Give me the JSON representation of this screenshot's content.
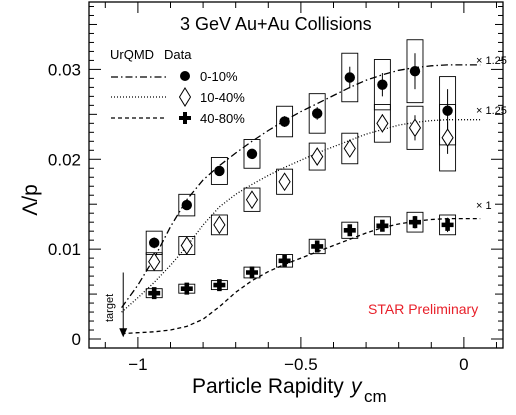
{
  "chart_data": {
    "type": "scatter",
    "title": "3 GeV Au+Au Collisions",
    "xlabel": "Particle Rapidity",
    "xlabel_symbol": "y",
    "xlabel_subscript": "cm",
    "ylabel": "Λ/p",
    "xlim": [
      -1.15,
      0.12
    ],
    "ylim": [
      -0.001,
      0.0375
    ],
    "x_ticks": [
      -1,
      -0.5,
      0
    ],
    "x_tick_labels": [
      "−1",
      "−0.5",
      "0"
    ],
    "y_ticks": [
      0,
      0.01,
      0.02,
      0.03
    ],
    "y_tick_labels": [
      "0",
      "0.01",
      "0.02",
      "0.03"
    ],
    "legend": {
      "header_model": "UrQMD",
      "header_data": "Data",
      "entries": [
        "0-10%",
        "10-40%",
        "40-80%"
      ],
      "placement": "top-left"
    },
    "series": [
      {
        "name": "0-10%",
        "marker": "filled-circle",
        "x": [
          -0.95,
          -0.85,
          -0.75,
          -0.65,
          -0.55,
          -0.45,
          -0.35,
          -0.25,
          -0.15,
          -0.05
        ],
        "y": [
          0.0107,
          0.0149,
          0.0187,
          0.0206,
          0.0242,
          0.0251,
          0.0291,
          0.0283,
          0.0298,
          0.0254
        ],
        "stat": [
          0.0006,
          0.0005,
          0.0005,
          0.0005,
          0.0006,
          0.0007,
          0.0012,
          0.0013,
          0.002,
          0.0024
        ],
        "syst": [
          0.0013,
          0.0012,
          0.0015,
          0.0016,
          0.0017,
          0.0022,
          0.0027,
          0.0028,
          0.0035,
          0.0038
        ]
      },
      {
        "name": "10-40%",
        "marker": "open-diamond",
        "x": [
          -0.95,
          -0.85,
          -0.75,
          -0.65,
          -0.55,
          -0.45,
          -0.35,
          -0.25,
          -0.15,
          -0.05
        ],
        "y": [
          0.0086,
          0.0104,
          0.0127,
          0.0155,
          0.0175,
          0.0203,
          0.0212,
          0.024,
          0.0235,
          0.0224
        ],
        "stat": [
          0.0005,
          0.0004,
          0.0004,
          0.0005,
          0.0006,
          0.0006,
          0.0008,
          0.001,
          0.0014,
          0.0018
        ],
        "syst": [
          0.001,
          0.001,
          0.0011,
          0.0013,
          0.0014,
          0.0015,
          0.0017,
          0.0021,
          0.0024,
          0.0037
        ]
      },
      {
        "name": "40-80%",
        "marker": "filled-cross",
        "x": [
          -0.95,
          -0.85,
          -0.75,
          -0.65,
          -0.55,
          -0.45,
          -0.35,
          -0.25,
          -0.15,
          -0.05
        ],
        "y": [
          0.0051,
          0.0056,
          0.006,
          0.0074,
          0.0087,
          0.0103,
          0.0121,
          0.0126,
          0.013,
          0.0127
        ],
        "stat": [
          0.0003,
          0.0003,
          0.0003,
          0.0004,
          0.0004,
          0.0005,
          0.0006,
          0.0006,
          0.0007,
          0.0008
        ],
        "syst": [
          0.0005,
          0.0005,
          0.0005,
          0.0006,
          0.0007,
          0.0008,
          0.0009,
          0.001,
          0.0011,
          0.0011
        ]
      }
    ],
    "models": [
      {
        "style": "dash-dot",
        "scale_label": "× 1.25",
        "x": [
          -1.05,
          -1.0,
          -0.95,
          -0.9,
          -0.85,
          -0.8,
          -0.75,
          -0.7,
          -0.65,
          -0.6,
          -0.55,
          -0.5,
          -0.45,
          -0.4,
          -0.35,
          -0.3,
          -0.25,
          -0.2,
          -0.15,
          -0.1,
          -0.05,
          0.0,
          0.05
        ],
        "y": [
          0.0035,
          0.006,
          0.009,
          0.0125,
          0.0155,
          0.0177,
          0.0193,
          0.0207,
          0.022,
          0.0232,
          0.0243,
          0.0253,
          0.0262,
          0.0271,
          0.028,
          0.0288,
          0.0294,
          0.0299,
          0.0302,
          0.0304,
          0.0305,
          0.0305,
          0.0305
        ]
      },
      {
        "style": "dotted",
        "scale_label": "× 1.25",
        "x": [
          -1.05,
          -1.0,
          -0.95,
          -0.9,
          -0.85,
          -0.8,
          -0.75,
          -0.7,
          -0.65,
          -0.6,
          -0.55,
          -0.5,
          -0.45,
          -0.4,
          -0.35,
          -0.3,
          -0.25,
          -0.2,
          -0.15,
          -0.1,
          -0.05,
          0.0,
          0.05
        ],
        "y": [
          0.003,
          0.0046,
          0.0063,
          0.0082,
          0.0103,
          0.0127,
          0.0147,
          0.0161,
          0.0172,
          0.0182,
          0.0191,
          0.0199,
          0.0207,
          0.0214,
          0.0221,
          0.0228,
          0.0233,
          0.0238,
          0.0241,
          0.0243,
          0.0244,
          0.0244,
          0.0244
        ]
      },
      {
        "style": "dashed",
        "scale_label": "× 1",
        "x": [
          -1.05,
          -1.0,
          -0.95,
          -0.9,
          -0.85,
          -0.8,
          -0.75,
          -0.7,
          -0.65,
          -0.6,
          -0.55,
          -0.5,
          -0.45,
          -0.4,
          -0.35,
          -0.3,
          -0.25,
          -0.2,
          -0.15,
          -0.1,
          -0.05,
          0.0,
          0.05
        ],
        "y": [
          0.0006,
          0.0007,
          0.0008,
          0.001,
          0.0014,
          0.0022,
          0.0036,
          0.0052,
          0.0065,
          0.0075,
          0.0083,
          0.009,
          0.0097,
          0.0104,
          0.0111,
          0.0118,
          0.0124,
          0.0128,
          0.0131,
          0.0133,
          0.0134,
          0.0134,
          0.0134
        ]
      }
    ],
    "annotations": {
      "target_label": "target",
      "target_x": -1.045,
      "target_y_from": 0.0074,
      "target_y_to": 0.0002,
      "preliminary": "STAR Preliminary"
    },
    "grid": false
  }
}
